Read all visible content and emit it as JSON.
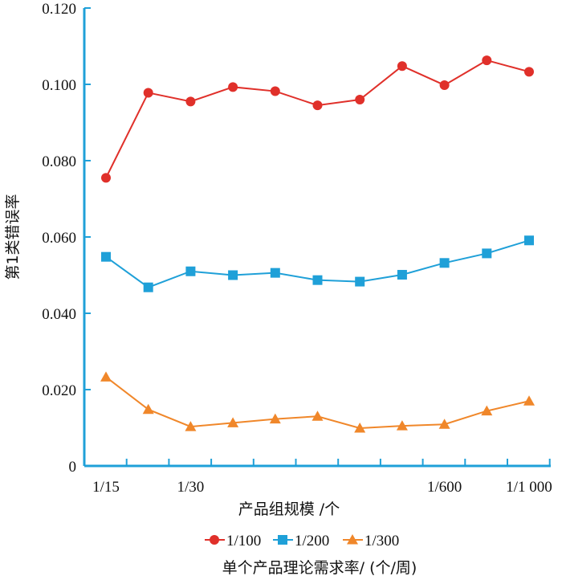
{
  "chart_data": {
    "type": "line",
    "xlabel": "产品组规模 /个",
    "ylabel": "第1类错误率",
    "legend_title": "单个产品理论需求率/ (个/周)",
    "legend_position": "bottom",
    "grid": false,
    "ylim": [
      0,
      0.12
    ],
    "y_ticks": [
      "0",
      "0.020",
      "0.040",
      "0.060",
      "0.080",
      "0.100",
      "0.120"
    ],
    "x_tick_labels": [
      "1/15",
      "1/30",
      "1/600",
      "1/1 000"
    ],
    "x_count": 11,
    "series": [
      {
        "name": "1/100",
        "color": "#e0302a",
        "marker": "circle",
        "values": [
          0.0755,
          0.0978,
          0.0955,
          0.0993,
          0.0982,
          0.0945,
          0.096,
          0.1048,
          0.0998,
          0.1063,
          0.1033
        ]
      },
      {
        "name": "1/200",
        "color": "#1fa0d8",
        "marker": "square",
        "values": [
          0.0548,
          0.0468,
          0.051,
          0.05,
          0.0506,
          0.0487,
          0.0483,
          0.0501,
          0.0532,
          0.0557,
          0.0591
        ]
      },
      {
        "name": "1/300",
        "color": "#f0872a",
        "marker": "triangle",
        "values": [
          0.0233,
          0.0148,
          0.0103,
          0.0113,
          0.0123,
          0.013,
          0.0099,
          0.0105,
          0.0109,
          0.0144,
          0.017
        ]
      }
    ]
  }
}
